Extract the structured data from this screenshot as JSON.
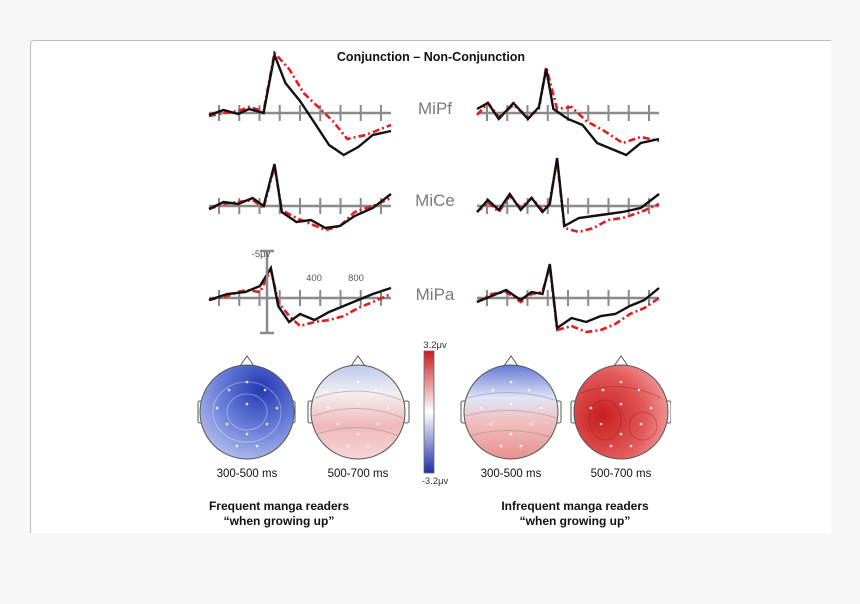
{
  "figure": {
    "title": "Conjunction – Non-Conjunction",
    "electrodes": [
      "MiPf",
      "MiCe",
      "MiPa"
    ],
    "scale": {
      "amplitude_label": "-5μv",
      "time_labels": [
        "400",
        "800"
      ]
    },
    "colorbar": {
      "max_label": "3.2μv",
      "min_label": "-3.2μv",
      "max_value": 3.2,
      "min_value": -3.2,
      "color_high": "#c81e1e",
      "color_low": "#1e2ea8"
    },
    "groups": [
      {
        "label_line1": "Frequent manga readers",
        "label_line2": "“when growing up”",
        "windows": [
          "300-500 ms",
          "500-700 ms"
        ]
      },
      {
        "label_line1": "Infrequent manga readers",
        "label_line2": "“when growing up”",
        "windows": [
          "300-500 ms",
          "500-700 ms"
        ]
      }
    ],
    "trace_colors": {
      "solid": "#111111",
      "dashed": "#e02020",
      "axis": "#8a8a8a"
    }
  }
}
